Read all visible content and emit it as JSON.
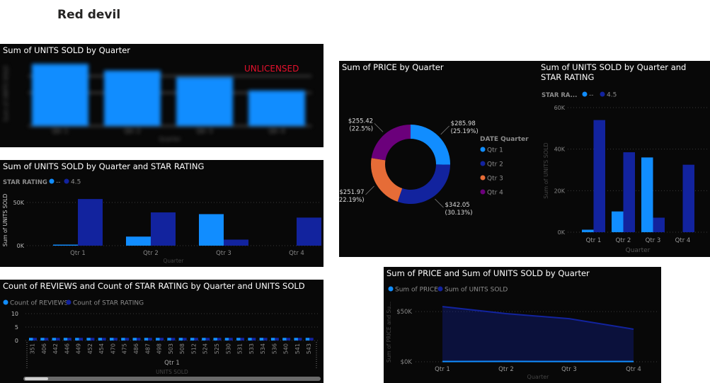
{
  "page": {
    "title": "Red devil"
  },
  "colors": {
    "background": "#080808",
    "light_blue": "#118dff",
    "dark_blue": "#12239e",
    "orange": "#e66c37",
    "purple": "#6b007b",
    "gridline": "#3a3a3a",
    "text_dim": "#8c8c8c",
    "unlicensed_red": "#e8112d"
  },
  "panels": {
    "p1": {
      "title": "Sum of UNITS SOLD by Quarter",
      "watermark": "UNLICENSED"
    },
    "p2": {
      "title": "Sum of UNITS SOLD by Quarter and STAR RATING"
    },
    "p3": {
      "title": "Count of REVIEWS and Count of STAR RATING by Quarter and UNITS SOLD"
    },
    "p4": {
      "title": "Sum of PRICE by Quarter"
    },
    "p5": {
      "title": "Sum of UNITS SOLD by Quarter and STAR RATING"
    },
    "p6": {
      "title": "Sum of PRICE and Sum of UNITS SOLD by Quarter"
    }
  },
  "chart_data": [
    {
      "id": "p1",
      "type": "bar",
      "title": "Sum of UNITS SOLD by Quarter",
      "categories": [
        "Qtr 1",
        "Qtr 2",
        "Qtr 3",
        "Qtr 4"
      ],
      "values": [
        56000,
        50000,
        44000,
        32000
      ],
      "xlabel": "Quarter",
      "ylabel": "Sum of UNITS SOLD",
      "ylim": [
        0,
        60000
      ],
      "note": "blurred"
    },
    {
      "id": "p2",
      "type": "bar",
      "title": "Sum of UNITS SOLD by Quarter and STAR RATING",
      "categories": [
        "Qtr 1",
        "Qtr 2",
        "Qtr 3",
        "Qtr 4"
      ],
      "legend_title": "STAR RATING",
      "series": [
        {
          "name": "--",
          "values": [
            1200,
            10500,
            36500,
            0
          ]
        },
        {
          "name": "4.5",
          "values": [
            54000,
            38500,
            7000,
            32500
          ]
        }
      ],
      "ylim": [
        0,
        60000
      ],
      "yticks": [
        "0K",
        "50K"
      ],
      "ytick_values": [
        0,
        50000
      ],
      "xlabel": "Quarter",
      "ylabel": "Sum of UNITS SOLD"
    },
    {
      "id": "p3",
      "type": "bar",
      "title": "Count of REVIEWS and Count of STAR RATING by Quarter and UNITS SOLD",
      "legend": [
        "Count of REVIEWS",
        "Count of STAR RATING"
      ],
      "categories": [
        "351",
        "406",
        "442",
        "446",
        "449",
        "452",
        "454",
        "470",
        "475",
        "486",
        "487",
        "498",
        "503",
        "508",
        "512",
        "524",
        "525",
        "530",
        "531",
        "533",
        "534",
        "536",
        "540",
        "541",
        "543"
      ],
      "series": [
        {
          "name": "Count of REVIEWS",
          "values": [
            1,
            1,
            1,
            1,
            1,
            1,
            1,
            1,
            1,
            1,
            1,
            1,
            1,
            1,
            1,
            1,
            1,
            1,
            1,
            1,
            1,
            1,
            1,
            1,
            1
          ]
        },
        {
          "name": "Count of STAR RATING",
          "values": [
            1,
            1,
            1,
            1,
            1,
            1,
            1,
            1,
            1,
            1,
            1,
            1,
            1,
            1,
            1,
            1,
            1,
            1,
            1,
            1,
            1,
            1,
            1,
            1,
            1
          ]
        }
      ],
      "yticks": [
        "0",
        "5",
        "10"
      ],
      "ytick_values": [
        0,
        5,
        10
      ],
      "ylim": [
        0,
        10
      ],
      "group_label": "Qtr 1",
      "xlabel": "UNITS SOLD"
    },
    {
      "id": "p4",
      "type": "pie",
      "title": "Sum of PRICE by Quarter",
      "legend_title": "DATE Quarter",
      "categories": [
        "Qtr 1",
        "Qtr 2",
        "Qtr 3",
        "Qtr 4"
      ],
      "values": [
        285.98,
        342.05,
        251.97,
        255.42
      ],
      "labels": [
        {
          "value": "$285.98",
          "pct": "(25.19%)"
        },
        {
          "value": "$342.05",
          "pct": "(30.13%)"
        },
        {
          "value": "$251.97",
          "pct": "(22.19%)"
        },
        {
          "value": "$255.42",
          "pct": "(22.5%)"
        }
      ]
    },
    {
      "id": "p5",
      "type": "bar",
      "title": "Sum of UNITS SOLD by Quarter and STAR RATING",
      "legend_title": "STAR RA...",
      "categories": [
        "Qtr 1",
        "Qtr 2",
        "Qtr 3",
        "Qtr 4"
      ],
      "series": [
        {
          "name": "--",
          "values": [
            1200,
            10000,
            36000,
            0
          ]
        },
        {
          "name": "4.5",
          "values": [
            54000,
            38500,
            7000,
            32500
          ]
        }
      ],
      "ylim": [
        0,
        60000
      ],
      "yticks": [
        "0K",
        "20K",
        "40K",
        "60K"
      ],
      "ytick_values": [
        0,
        20000,
        40000,
        60000
      ],
      "xlabel": "Quarter",
      "ylabel": "Sum of UNITS SOLD"
    },
    {
      "id": "p6",
      "type": "area",
      "title": "Sum of PRICE and Sum of UNITS SOLD by Quarter",
      "categories": [
        "Qtr 1",
        "Qtr 2",
        "Qtr 3",
        "Qtr 4"
      ],
      "series": [
        {
          "name": "Sum of PRICE",
          "values": [
            285.98,
            342.05,
            251.97,
            255.42
          ]
        },
        {
          "name": "Sum of UNITS SOLD",
          "values": [
            55000,
            48000,
            43000,
            32500
          ]
        }
      ],
      "ylim": [
        0,
        60000
      ],
      "yticks": [
        "$0K",
        "$50K"
      ],
      "ytick_values": [
        0,
        50000
      ],
      "xlabel": "Quarter",
      "ylabel": "Sum of PRICE and Su..."
    }
  ]
}
